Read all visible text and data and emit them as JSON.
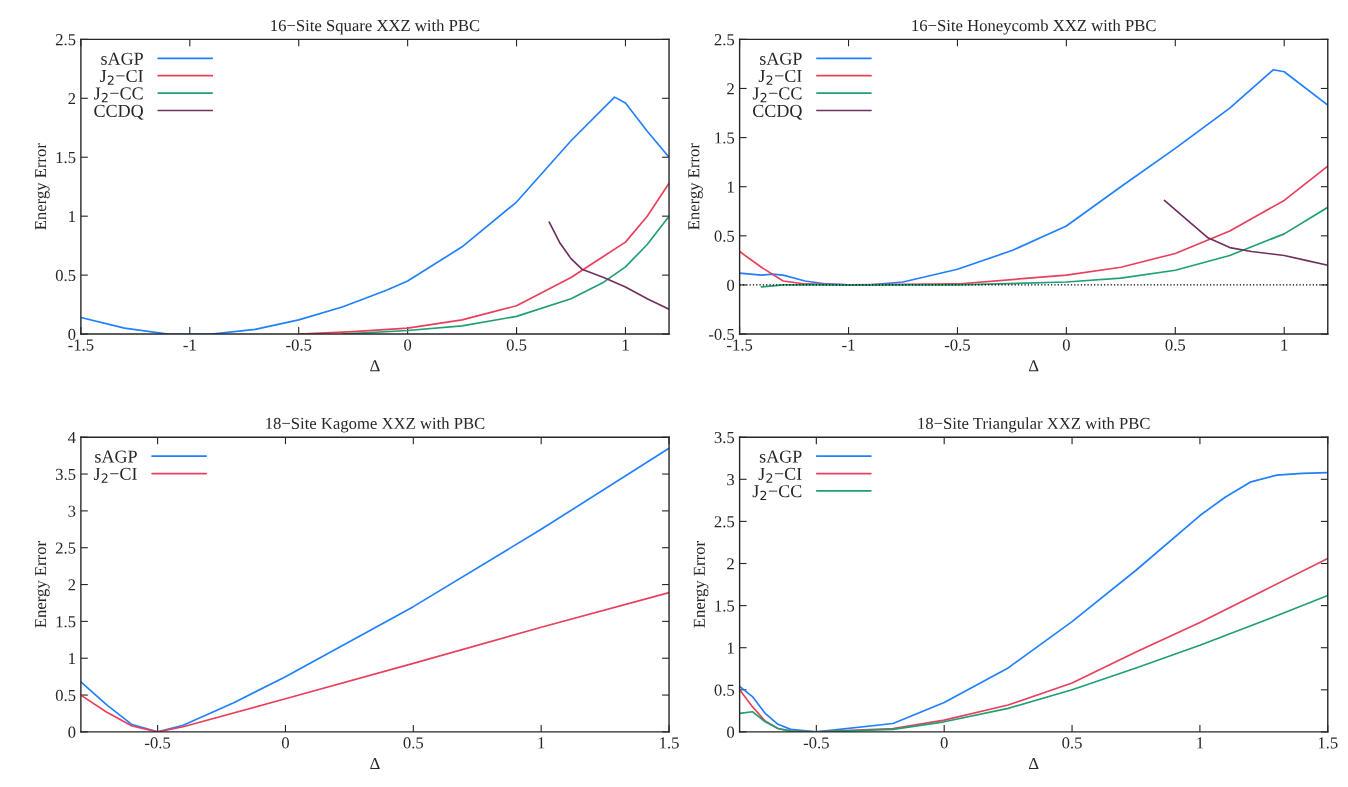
{
  "chart_data": [
    {
      "type": "line",
      "title": "16−Site Square XXZ with PBC",
      "xlabel": "Δ",
      "ylabel": "Energy Error",
      "xlim": [
        -1.5,
        1.2
      ],
      "ylim": [
        0,
        2.5
      ],
      "xticks": [
        -1.5,
        -1,
        -0.5,
        0,
        0.5,
        1
      ],
      "yticks": [
        0,
        0.5,
        1,
        1.5,
        2,
        2.5
      ],
      "legend": "top left",
      "grid": false,
      "series": [
        {
          "name": "sAGP",
          "color": "#2080ff",
          "x": [
            -1.5,
            -1.3,
            -1.1,
            -0.9,
            -0.7,
            -0.5,
            -0.3,
            -0.1,
            0,
            0.25,
            0.5,
            0.75,
            0.95,
            1.0,
            1.1,
            1.2
          ],
          "values": [
            0.14,
            0.05,
            0.0,
            0.0,
            0.04,
            0.12,
            0.23,
            0.37,
            0.45,
            0.74,
            1.12,
            1.64,
            2.01,
            1.96,
            1.72,
            1.5
          ]
        },
        {
          "name": "J$_{2}$−CI",
          "color": "#e8405a",
          "x": [
            -0.5,
            -0.25,
            0,
            0.25,
            0.5,
            0.75,
            0.9,
            1.0,
            1.1,
            1.2
          ],
          "values": [
            0.0,
            0.02,
            0.05,
            0.12,
            0.24,
            0.48,
            0.66,
            0.78,
            1.0,
            1.28
          ]
        },
        {
          "name": "J$_{2}$−CC",
          "color": "#20a070",
          "x": [
            -0.3,
            0,
            0.25,
            0.5,
            0.75,
            0.9,
            1.0,
            1.1,
            1.2
          ],
          "values": [
            0.0,
            0.03,
            0.07,
            0.15,
            0.3,
            0.44,
            0.57,
            0.76,
            1.0
          ]
        },
        {
          "name": "CCDQ",
          "color": "#703060",
          "x": [
            0.65,
            0.7,
            0.75,
            0.8,
            0.9,
            1.0,
            1.1,
            1.2
          ],
          "values": [
            0.95,
            0.77,
            0.64,
            0.55,
            0.48,
            0.4,
            0.3,
            0.21
          ]
        }
      ]
    },
    {
      "type": "line",
      "title": "16−Site Honeycomb XXZ with PBC",
      "xlabel": "Δ",
      "ylabel": "Energy Error",
      "xlim": [
        -1.5,
        1.2
      ],
      "ylim": [
        -0.5,
        2.5
      ],
      "xticks": [
        -1.5,
        -1,
        -0.5,
        0,
        0.5,
        1
      ],
      "yticks": [
        -0.5,
        0,
        0.5,
        1,
        1.5,
        2,
        2.5
      ],
      "legend": "top left",
      "grid": false,
      "ref_lines": [
        {
          "axis": "y",
          "value": 0,
          "color": "#000000",
          "line_style": "dotted"
        }
      ],
      "series": [
        {
          "name": "sAGP",
          "color": "#2080ff",
          "x": [
            -1.5,
            -1.4,
            -1.35,
            -1.3,
            -1.2,
            -1.1,
            -1.0,
            -0.9,
            -0.75,
            -0.5,
            -0.25,
            0,
            0.25,
            0.5,
            0.75,
            0.95,
            1.0,
            1.2
          ],
          "values": [
            0.12,
            0.1,
            0.11,
            0.1,
            0.04,
            0.01,
            0.0,
            0.0,
            0.03,
            0.16,
            0.35,
            0.6,
            1.0,
            1.39,
            1.8,
            2.19,
            2.17,
            1.83
          ]
        },
        {
          "name": "J$_{2}$−CI",
          "color": "#e8405a",
          "x": [
            -1.5,
            -1.4,
            -1.3,
            -1.2,
            -1.0,
            -0.5,
            0,
            0.25,
            0.5,
            0.75,
            1.0,
            1.2
          ],
          "values": [
            0.34,
            0.18,
            0.04,
            0.01,
            0.0,
            0.01,
            0.1,
            0.18,
            0.32,
            0.55,
            0.86,
            1.21
          ]
        },
        {
          "name": "J$_{2}$−CC",
          "color": "#20a070",
          "x": [
            -1.4,
            -1.3,
            -0.5,
            0,
            0.25,
            0.5,
            0.75,
            1.0,
            1.2
          ],
          "values": [
            -0.02,
            0.0,
            0.0,
            0.03,
            0.07,
            0.15,
            0.3,
            0.52,
            0.79
          ]
        },
        {
          "name": "CCDQ",
          "color": "#703060",
          "x": [
            0.45,
            0.55,
            0.65,
            0.75,
            0.85,
            1.0,
            1.1,
            1.2
          ],
          "values": [
            0.86,
            0.67,
            0.48,
            0.38,
            0.34,
            0.3,
            0.25,
            0.2
          ]
        }
      ]
    },
    {
      "type": "line",
      "title": "18−Site Kagome XXZ with PBC",
      "xlabel": "Δ",
      "ylabel": "Energy Error",
      "xlim": [
        -0.8,
        1.5
      ],
      "ylim": [
        0,
        4
      ],
      "xticks": [
        -0.5,
        0,
        0.5,
        1,
        1.5
      ],
      "yticks": [
        0,
        0.5,
        1,
        1.5,
        2,
        2.5,
        3,
        3.5,
        4
      ],
      "legend": "top left",
      "grid": false,
      "series": [
        {
          "name": "sAGP",
          "color": "#2080ff",
          "x": [
            -0.8,
            -0.7,
            -0.6,
            -0.5,
            -0.4,
            -0.2,
            0,
            0.5,
            1.0,
            1.5
          ],
          "values": [
            0.68,
            0.37,
            0.1,
            0.0,
            0.09,
            0.4,
            0.75,
            1.7,
            2.75,
            3.85
          ]
        },
        {
          "name": "J$_{2}$−CI",
          "color": "#e8405a",
          "x": [
            -0.8,
            -0.7,
            -0.6,
            -0.5,
            -0.4,
            0,
            0.5,
            1.0,
            1.5
          ],
          "values": [
            0.5,
            0.27,
            0.08,
            0.0,
            0.07,
            0.45,
            0.93,
            1.42,
            1.89
          ]
        }
      ]
    },
    {
      "type": "line",
      "title": "18−Site Triangular XXZ with PBC",
      "xlabel": "Δ",
      "ylabel": "Energy Error",
      "xlim": [
        -0.8,
        1.5
      ],
      "ylim": [
        0,
        3.5
      ],
      "xticks": [
        -0.5,
        0,
        0.5,
        1,
        1.5
      ],
      "yticks": [
        0,
        0.5,
        1,
        1.5,
        2,
        2.5,
        3,
        3.5
      ],
      "legend": "top left",
      "grid": false,
      "series": [
        {
          "name": "sAGP",
          "color": "#2080ff",
          "x": [
            -0.8,
            -0.75,
            -0.7,
            -0.65,
            -0.6,
            -0.5,
            -0.2,
            0,
            0.25,
            0.5,
            0.75,
            1.0,
            1.1,
            1.2,
            1.3,
            1.4,
            1.5
          ],
          "values": [
            0.54,
            0.42,
            0.22,
            0.09,
            0.03,
            0.0,
            0.1,
            0.35,
            0.76,
            1.31,
            1.92,
            2.57,
            2.79,
            2.97,
            3.05,
            3.07,
            3.08
          ]
        },
        {
          "name": "J$_{2}$−CI",
          "color": "#e8405a",
          "x": [
            -0.8,
            -0.75,
            -0.7,
            -0.65,
            -0.6,
            -0.5,
            -0.2,
            0,
            0.25,
            0.5,
            0.75,
            1.0,
            1.25,
            1.5
          ],
          "values": [
            0.5,
            0.3,
            0.13,
            0.04,
            0.01,
            0.0,
            0.04,
            0.14,
            0.32,
            0.58,
            0.95,
            1.3,
            1.68,
            2.06
          ]
        },
        {
          "name": "J$_{2}$−CC",
          "color": "#20a070",
          "x": [
            -0.8,
            -0.75,
            -0.7,
            -0.65,
            -0.6,
            -0.5,
            -0.2,
            0,
            0.25,
            0.5,
            0.75,
            1.0,
            1.25,
            1.5
          ],
          "values": [
            0.22,
            0.24,
            0.12,
            0.04,
            0.01,
            0.0,
            0.03,
            0.12,
            0.28,
            0.5,
            0.76,
            1.03,
            1.32,
            1.62
          ]
        }
      ]
    }
  ]
}
